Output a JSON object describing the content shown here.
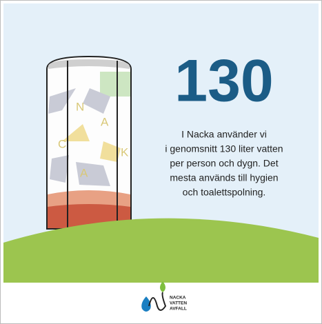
{
  "headline": "130",
  "body": [
    "I Nacka använder vi",
    "i genomsnitt 130 liter vatten",
    "per person och dygn. Det",
    "mesta används till hygien",
    "och toalettspolning."
  ],
  "tower_letters": [
    "N",
    "A",
    "C",
    "K",
    "A"
  ],
  "logo": {
    "lines": [
      "NACKA",
      "VATTEN",
      "AVFALL"
    ]
  }
}
